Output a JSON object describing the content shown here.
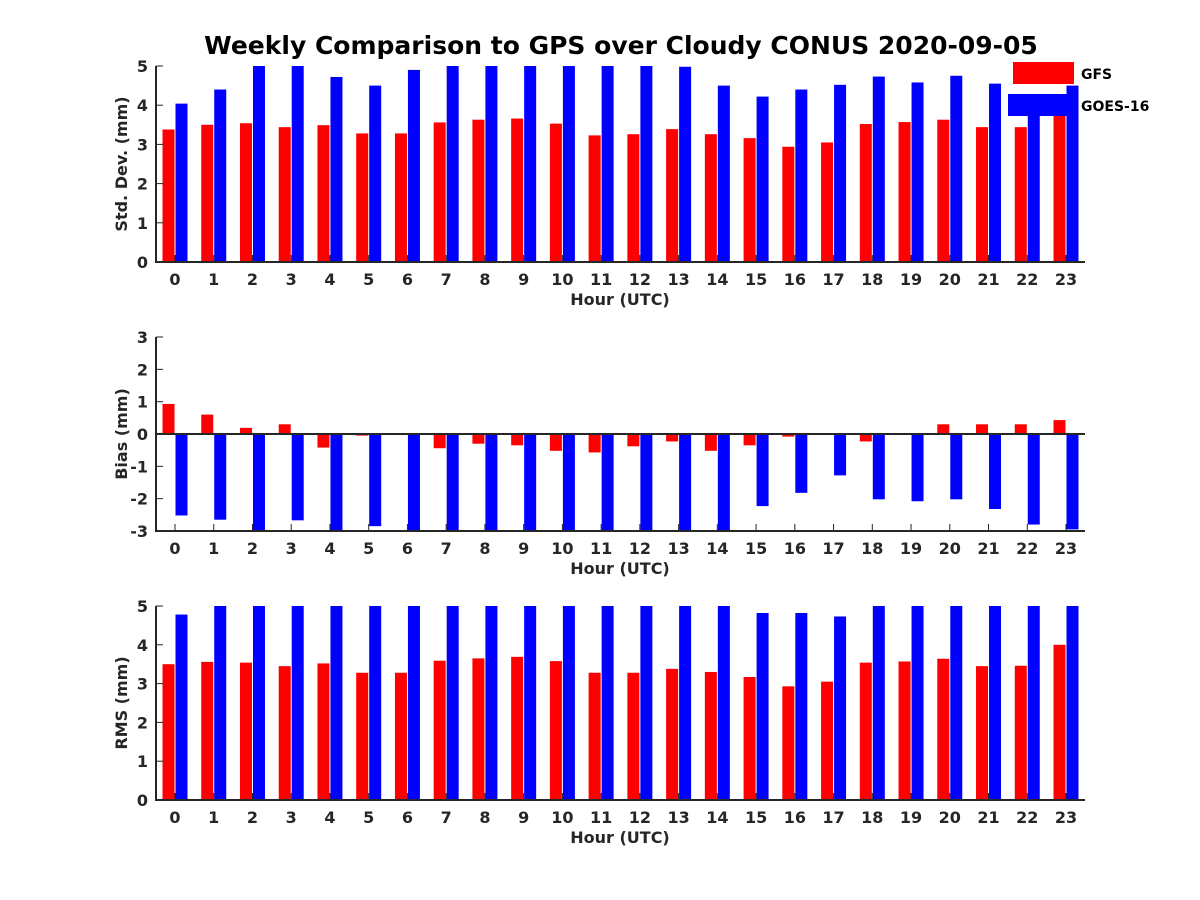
{
  "chart_title": "Weekly Comparison to GPS over Cloudy CONUS 2020-09-05",
  "legend": {
    "placement": "top-right",
    "entries": [
      {
        "label": "GFS",
        "color": "#ff0000"
      },
      {
        "label": "GOES-16",
        "color": "#0000ff"
      }
    ]
  },
  "chart_data": [
    {
      "type": "bar",
      "xlabel": "Hour (UTC)",
      "ylabel": "Std. Dev. (mm)",
      "ylim": [
        0,
        5
      ],
      "yticks": [
        0,
        1,
        2,
        3,
        4,
        5
      ],
      "grid": false,
      "categories": [
        "0",
        "1",
        "2",
        "3",
        "4",
        "5",
        "6",
        "7",
        "8",
        "9",
        "10",
        "11",
        "12",
        "13",
        "14",
        "15",
        "16",
        "17",
        "18",
        "19",
        "20",
        "21",
        "22",
        "23"
      ],
      "series": [
        {
          "name": "GFS",
          "color": "#ff0000",
          "values": [
            3.38,
            3.5,
            3.54,
            3.44,
            3.49,
            3.28,
            3.28,
            3.56,
            3.63,
            3.66,
            3.53,
            3.23,
            3.26,
            3.39,
            3.26,
            3.16,
            2.94,
            3.05,
            3.52,
            3.57,
            3.63,
            3.44,
            3.44,
            3.9
          ]
        },
        {
          "name": "GOES-16",
          "color": "#0000ff",
          "values": [
            4.04,
            4.4,
            5.0,
            5.0,
            4.72,
            4.5,
            4.9,
            5.0,
            5.0,
            5.0,
            5.0,
            5.0,
            5.0,
            4.98,
            4.5,
            4.22,
            4.4,
            4.52,
            4.73,
            4.58,
            4.75,
            4.55,
            4.27,
            4.5
          ]
        }
      ]
    },
    {
      "type": "bar",
      "xlabel": "Hour (UTC)",
      "ylabel": "Bias (mm)",
      "ylim": [
        -3,
        3
      ],
      "yticks": [
        -3,
        -2,
        -1,
        0,
        1,
        2,
        3
      ],
      "grid": false,
      "zero_line": true,
      "categories": [
        "0",
        "1",
        "2",
        "3",
        "4",
        "5",
        "6",
        "7",
        "8",
        "9",
        "10",
        "11",
        "12",
        "13",
        "14",
        "15",
        "16",
        "17",
        "18",
        "19",
        "20",
        "21",
        "22",
        "23"
      ],
      "series": [
        {
          "name": "GFS",
          "color": "#ff0000",
          "values": [
            0.93,
            0.6,
            0.19,
            0.3,
            -0.42,
            -0.05,
            -0.02,
            -0.44,
            -0.3,
            -0.35,
            -0.52,
            -0.57,
            -0.38,
            -0.23,
            -0.52,
            -0.35,
            -0.08,
            -0.02,
            -0.23,
            -0.02,
            0.3,
            0.3,
            0.3,
            0.43
          ]
        },
        {
          "name": "GOES-16",
          "color": "#0000ff",
          "values": [
            -2.52,
            -2.65,
            -3.0,
            -2.67,
            -3.0,
            -2.85,
            -3.0,
            -3.0,
            -3.0,
            -3.0,
            -3.0,
            -3.0,
            -3.0,
            -3.0,
            -3.0,
            -2.23,
            -1.82,
            -1.28,
            -2.02,
            -2.08,
            -2.02,
            -2.32,
            -2.8,
            -2.95
          ]
        }
      ]
    },
    {
      "type": "bar",
      "xlabel": "Hour (UTC)",
      "ylabel": "RMS (mm)",
      "ylim": [
        0,
        5
      ],
      "yticks": [
        0,
        1,
        2,
        3,
        4,
        5
      ],
      "grid": false,
      "categories": [
        "0",
        "1",
        "2",
        "3",
        "4",
        "5",
        "6",
        "7",
        "8",
        "9",
        "10",
        "11",
        "12",
        "13",
        "14",
        "15",
        "16",
        "17",
        "18",
        "19",
        "20",
        "21",
        "22",
        "23"
      ],
      "series": [
        {
          "name": "GFS",
          "color": "#ff0000",
          "values": [
            3.5,
            3.56,
            3.54,
            3.45,
            3.52,
            3.28,
            3.28,
            3.59,
            3.65,
            3.69,
            3.58,
            3.28,
            3.28,
            3.38,
            3.3,
            3.17,
            2.93,
            3.05,
            3.54,
            3.57,
            3.64,
            3.45,
            3.46,
            4.0
          ]
        },
        {
          "name": "GOES-16",
          "color": "#0000ff",
          "values": [
            4.78,
            5.0,
            5.0,
            5.0,
            5.0,
            5.0,
            5.0,
            5.0,
            5.0,
            5.0,
            5.0,
            5.0,
            5.0,
            5.0,
            5.0,
            4.82,
            4.82,
            4.73,
            5.0,
            5.0,
            5.0,
            5.0,
            5.0,
            5.0
          ]
        }
      ]
    }
  ]
}
